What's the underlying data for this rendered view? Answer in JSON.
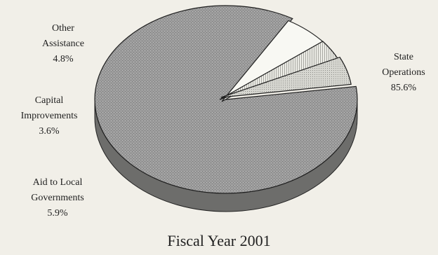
{
  "chart_data": {
    "type": "pie",
    "style": "3d-exploded",
    "title": "Fiscal Year 2001",
    "legend": "none",
    "slices": [
      {
        "key": "state-operations",
        "name_lines": [
          "State",
          "Operations"
        ],
        "value": 85.6,
        "value_label": "85.6%",
        "color": "#9a9a9a"
      },
      {
        "key": "aid-to-local-governments",
        "name_lines": [
          "Aid to Local",
          "Governments"
        ],
        "value": 5.9,
        "value_label": "5.9%",
        "color": "#f7f7f2"
      },
      {
        "key": "capital-improvements",
        "name_lines": [
          "Capital",
          "Improvements"
        ],
        "value": 3.6,
        "value_label": "3.6%",
        "color": "#e2e2dc"
      },
      {
        "key": "other-assistance",
        "name_lines": [
          "Other",
          "Assistance"
        ],
        "value": 4.8,
        "value_label": "4.8%",
        "color": "#c9c9c4"
      }
    ]
  }
}
